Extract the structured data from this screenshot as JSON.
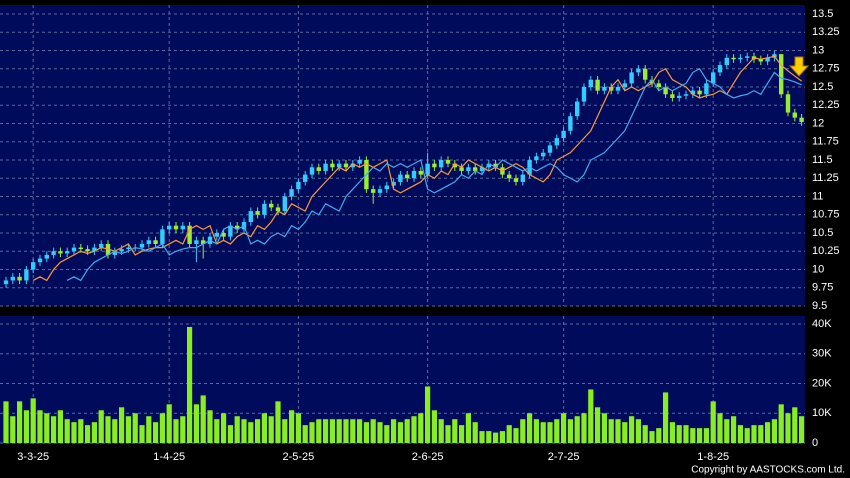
{
  "chart_data": [
    {
      "type": "candlestick",
      "open": [
        9.8,
        9.85,
        9.9,
        9.85,
        10.0,
        10.1,
        10.15,
        10.2,
        10.25,
        10.22,
        10.25,
        10.3,
        10.28,
        10.25,
        10.3,
        10.35,
        10.2,
        10.25,
        10.28,
        10.3,
        10.3,
        10.35,
        10.4,
        10.35,
        10.55,
        10.6,
        10.55,
        10.6,
        10.35,
        10.4,
        10.35,
        10.45,
        10.5,
        10.45,
        10.6,
        10.55,
        10.65,
        10.8,
        10.75,
        10.9,
        10.85,
        10.8,
        11.0,
        11.1,
        11.2,
        11.3,
        11.4,
        11.35,
        11.45,
        11.4,
        11.45,
        11.4,
        11.45,
        11.5,
        11.1,
        11.05,
        11.1,
        11.15,
        11.2,
        11.3,
        11.25,
        11.35,
        11.3,
        11.45,
        11.4,
        11.5,
        11.45,
        11.4,
        11.35,
        11.4,
        11.35,
        11.4,
        11.45,
        11.4,
        11.3,
        11.25,
        11.2,
        11.3,
        11.5,
        11.55,
        11.6,
        11.7,
        11.8,
        11.9,
        12.1,
        12.3,
        12.5,
        12.6,
        12.45,
        12.5,
        12.45,
        12.5,
        12.55,
        12.7,
        12.75,
        12.6,
        12.55,
        12.5,
        12.4,
        12.35,
        12.38,
        12.4,
        12.45,
        12.4,
        12.55,
        12.7,
        12.8,
        12.9,
        12.88,
        12.9,
        12.92,
        12.88,
        12.85,
        12.9,
        12.95,
        12.4,
        12.15,
        12.08
      ],
      "high": [
        9.9,
        9.95,
        9.95,
        10.05,
        10.15,
        10.2,
        10.25,
        10.3,
        10.3,
        10.3,
        10.35,
        10.35,
        10.33,
        10.35,
        10.4,
        10.4,
        10.3,
        10.33,
        10.35,
        10.35,
        10.4,
        10.45,
        10.45,
        10.6,
        10.65,
        10.65,
        10.65,
        10.65,
        10.45,
        10.45,
        10.5,
        10.55,
        10.55,
        10.65,
        10.65,
        10.7,
        10.85,
        10.85,
        10.95,
        10.95,
        10.9,
        11.05,
        11.15,
        11.25,
        11.35,
        11.45,
        11.45,
        11.5,
        11.5,
        11.5,
        11.5,
        11.5,
        11.55,
        11.55,
        11.15,
        11.15,
        11.2,
        11.25,
        11.35,
        11.35,
        11.4,
        11.4,
        11.6,
        11.5,
        11.55,
        11.55,
        11.5,
        11.45,
        11.45,
        11.45,
        11.45,
        11.5,
        11.5,
        11.45,
        11.35,
        11.3,
        11.35,
        11.55,
        11.6,
        11.65,
        11.75,
        11.85,
        11.95,
        12.15,
        12.35,
        12.55,
        12.65,
        12.65,
        12.55,
        12.55,
        12.55,
        12.6,
        12.75,
        12.8,
        12.8,
        12.65,
        12.6,
        12.55,
        12.45,
        12.43,
        12.45,
        12.5,
        12.5,
        12.6,
        12.75,
        12.85,
        12.95,
        12.95,
        12.95,
        12.97,
        12.97,
        12.93,
        12.95,
        13.0,
        12.95,
        12.45,
        12.2,
        12.13
      ],
      "low": [
        9.75,
        9.8,
        9.8,
        9.8,
        9.95,
        10.05,
        10.1,
        10.15,
        10.17,
        10.17,
        10.2,
        10.23,
        10.2,
        10.2,
        10.25,
        10.15,
        10.15,
        10.2,
        10.23,
        10.25,
        10.25,
        10.3,
        10.3,
        10.3,
        10.5,
        10.5,
        10.5,
        10.3,
        10.1,
        10.15,
        10.3,
        10.4,
        10.4,
        10.4,
        10.5,
        10.5,
        10.6,
        10.7,
        10.7,
        10.8,
        10.75,
        10.75,
        10.95,
        11.05,
        11.15,
        11.25,
        11.3,
        11.3,
        11.35,
        11.35,
        11.35,
        11.35,
        11.4,
        11.05,
        10.9,
        11.0,
        11.05,
        11.1,
        11.15,
        11.2,
        11.2,
        11.25,
        11.25,
        11.35,
        11.35,
        11.4,
        11.35,
        11.3,
        11.3,
        11.3,
        11.3,
        11.35,
        11.35,
        11.25,
        11.2,
        11.15,
        11.15,
        11.25,
        11.45,
        11.5,
        11.55,
        11.65,
        11.75,
        11.85,
        12.05,
        12.25,
        12.45,
        12.4,
        12.4,
        12.4,
        12.4,
        12.45,
        12.5,
        12.65,
        12.55,
        12.5,
        12.45,
        12.35,
        12.3,
        12.3,
        12.33,
        12.35,
        12.35,
        12.35,
        12.5,
        12.65,
        12.75,
        12.83,
        12.83,
        12.85,
        12.83,
        12.8,
        12.8,
        12.85,
        12.35,
        12.1,
        12.03,
        11.97
      ],
      "close": [
        9.85,
        9.9,
        9.85,
        10.0,
        10.1,
        10.15,
        10.2,
        10.25,
        10.22,
        10.25,
        10.3,
        10.28,
        10.25,
        10.3,
        10.35,
        10.2,
        10.25,
        10.28,
        10.3,
        10.3,
        10.35,
        10.4,
        10.35,
        10.55,
        10.6,
        10.55,
        10.6,
        10.35,
        10.4,
        10.35,
        10.45,
        10.5,
        10.45,
        10.6,
        10.55,
        10.65,
        10.8,
        10.75,
        10.9,
        10.85,
        10.8,
        11.0,
        11.1,
        11.2,
        11.3,
        11.4,
        11.35,
        11.45,
        11.4,
        11.45,
        11.4,
        11.45,
        11.5,
        11.1,
        11.05,
        11.1,
        11.15,
        11.2,
        11.3,
        11.25,
        11.35,
        11.3,
        11.45,
        11.4,
        11.5,
        11.45,
        11.4,
        11.35,
        11.4,
        11.35,
        11.4,
        11.45,
        11.4,
        11.3,
        11.25,
        11.2,
        11.3,
        11.5,
        11.55,
        11.6,
        11.7,
        11.8,
        11.9,
        12.1,
        12.3,
        12.5,
        12.6,
        12.45,
        12.5,
        12.45,
        12.5,
        12.55,
        12.7,
        12.75,
        12.6,
        12.55,
        12.5,
        12.4,
        12.35,
        12.38,
        12.4,
        12.45,
        12.4,
        12.55,
        12.7,
        12.8,
        12.9,
        12.88,
        12.9,
        12.92,
        12.88,
        12.85,
        12.9,
        12.95,
        12.4,
        12.15,
        12.08,
        12.02
      ],
      "up_color": "#33ccff",
      "down_color": "#99ee33",
      "lines": [
        {
          "color": "#ff9933",
          "values": [
            null,
            null,
            null,
            null,
            9.85,
            9.9,
            9.85,
            10.0,
            10.1,
            10.15,
            10.2,
            10.25,
            10.22,
            10.25,
            10.3,
            10.28,
            10.25,
            10.3,
            10.35,
            10.2,
            10.25,
            10.28,
            10.3,
            10.3,
            10.35,
            10.4,
            10.35,
            10.55,
            10.6,
            10.55,
            10.6,
            10.35,
            10.4,
            10.35,
            10.45,
            10.5,
            10.45,
            10.6,
            10.55,
            10.65,
            10.8,
            10.75,
            10.9,
            10.85,
            10.8,
            11.0,
            11.1,
            11.2,
            11.3,
            11.4,
            11.35,
            11.45,
            11.4,
            11.45,
            11.4,
            11.45,
            11.5,
            11.1,
            11.05,
            11.1,
            11.15,
            11.2,
            11.3,
            11.25,
            11.35,
            11.3,
            11.45,
            11.4,
            11.5,
            11.45,
            11.4,
            11.35,
            11.4,
            11.35,
            11.4,
            11.45,
            11.4,
            11.3,
            11.25,
            11.2,
            11.3,
            11.5,
            11.55,
            11.6,
            11.7,
            11.8,
            11.9,
            12.1,
            12.3,
            12.5,
            12.6,
            12.45,
            12.5,
            12.45,
            12.5,
            12.55,
            12.7,
            12.75,
            12.6,
            12.55,
            12.5,
            12.4,
            12.35,
            12.38,
            12.4,
            12.45,
            12.4,
            12.55,
            12.7,
            12.8,
            12.9,
            12.88,
            12.9,
            12.92,
            12.8,
            12.72,
            12.65,
            12.58
          ]
        },
        {
          "color": "#44aaee",
          "values": [
            null,
            null,
            null,
            null,
            null,
            null,
            null,
            null,
            null,
            9.85,
            9.9,
            9.85,
            10.0,
            10.1,
            10.15,
            10.2,
            10.25,
            10.22,
            10.25,
            10.3,
            10.28,
            10.25,
            10.3,
            10.35,
            10.2,
            10.25,
            10.28,
            10.3,
            10.3,
            10.35,
            10.4,
            10.35,
            10.55,
            10.6,
            10.55,
            10.6,
            10.35,
            10.4,
            10.35,
            10.45,
            10.5,
            10.45,
            10.6,
            10.55,
            10.65,
            10.8,
            10.75,
            10.9,
            10.85,
            10.8,
            11.0,
            11.1,
            11.2,
            11.3,
            11.4,
            11.35,
            11.45,
            11.4,
            11.45,
            11.4,
            11.45,
            11.5,
            11.1,
            11.05,
            11.1,
            11.15,
            11.2,
            11.3,
            11.25,
            11.35,
            11.3,
            11.45,
            11.4,
            11.5,
            11.45,
            11.4,
            11.35,
            11.4,
            11.35,
            11.4,
            11.45,
            11.4,
            11.3,
            11.25,
            11.2,
            11.3,
            11.5,
            11.55,
            11.6,
            11.7,
            11.8,
            11.9,
            12.1,
            12.3,
            12.5,
            12.6,
            12.45,
            12.5,
            12.45,
            12.5,
            12.55,
            12.7,
            12.75,
            12.6,
            12.55,
            12.5,
            12.4,
            12.35,
            12.38,
            12.4,
            12.45,
            12.4,
            12.55,
            12.7,
            12.62,
            12.6,
            12.57,
            12.53
          ]
        }
      ],
      "ylim": [
        9.5,
        13.5
      ],
      "yticks": [
        9.5,
        9.75,
        10,
        10.25,
        10.5,
        10.75,
        11,
        11.25,
        11.5,
        11.75,
        12,
        12.25,
        12.5,
        12.75,
        13,
        13.25,
        13.5
      ],
      "grid": true
    },
    {
      "type": "bar",
      "categories": [
        null,
        null,
        null,
        null,
        "3-3-25",
        null,
        null,
        null,
        null,
        null,
        null,
        null,
        null,
        null,
        null,
        null,
        null,
        null,
        null,
        null,
        null,
        null,
        null,
        null,
        "1-4-25",
        null,
        null,
        null,
        null,
        null,
        null,
        null,
        null,
        null,
        null,
        null,
        null,
        null,
        null,
        null,
        null,
        null,
        null,
        "2-5-25",
        null,
        null,
        null,
        null,
        null,
        null,
        null,
        null,
        null,
        null,
        null,
        null,
        null,
        null,
        null,
        null,
        null,
        null,
        "2-6-25",
        null,
        null,
        null,
        null,
        null,
        null,
        null,
        null,
        null,
        null,
        null,
        null,
        null,
        null,
        null,
        null,
        null,
        null,
        null,
        "2-7-25",
        null,
        null,
        null,
        null,
        null,
        null,
        null,
        null,
        null,
        null,
        null,
        null,
        null,
        null,
        null,
        null,
        null,
        null,
        null,
        null,
        null,
        "1-8-25",
        null,
        null,
        null,
        null,
        null,
        null,
        null,
        null,
        null,
        null,
        null,
        null,
        null
      ],
      "values": [
        14000,
        9000,
        14000,
        11000,
        15000,
        11000,
        10000,
        9000,
        11000,
        8000,
        7000,
        8000,
        6000,
        7000,
        11000,
        9000,
        8000,
        12000,
        9000,
        10000,
        6000,
        9000,
        7000,
        10000,
        13000,
        8000,
        9000,
        39000,
        13000,
        16000,
        11000,
        8000,
        10000,
        6000,
        9000,
        8000,
        7000,
        8000,
        10000,
        9000,
        14000,
        8000,
        11000,
        10000,
        6000,
        7000,
        8000,
        8000,
        8000,
        8000,
        8000,
        8000,
        8000,
        7000,
        8000,
        7000,
        6000,
        8000,
        7000,
        8000,
        9000,
        10000,
        19000,
        11000,
        8000,
        6000,
        8000,
        6000,
        10000,
        7000,
        4000,
        4000,
        3500,
        4000,
        6000,
        5000,
        8000,
        10000,
        8000,
        7000,
        7000,
        8000,
        10000,
        8000,
        9000,
        10000,
        18000,
        12000,
        10000,
        8000,
        8000,
        7000,
        9000,
        8000,
        6000,
        4000,
        5000,
        17000,
        7000,
        6000,
        6000,
        5000,
        5000,
        5000,
        14000,
        10000,
        8000,
        9000,
        6000,
        5000,
        6000,
        6000,
        7000,
        8000,
        13000,
        10000,
        12000,
        9000
      ],
      "color": "#88ee22",
      "ylim": [
        0,
        40000
      ],
      "yticks": [
        0,
        {
          "value": 10000,
          "label": "10K"
        },
        {
          "value": 20000,
          "label": "20K"
        },
        {
          "value": 30000,
          "label": "30K"
        },
        {
          "value": 40000,
          "label": "40K"
        }
      ],
      "grid": true
    }
  ],
  "copyright": "Copyright by AASTOCKS.com Ltd."
}
